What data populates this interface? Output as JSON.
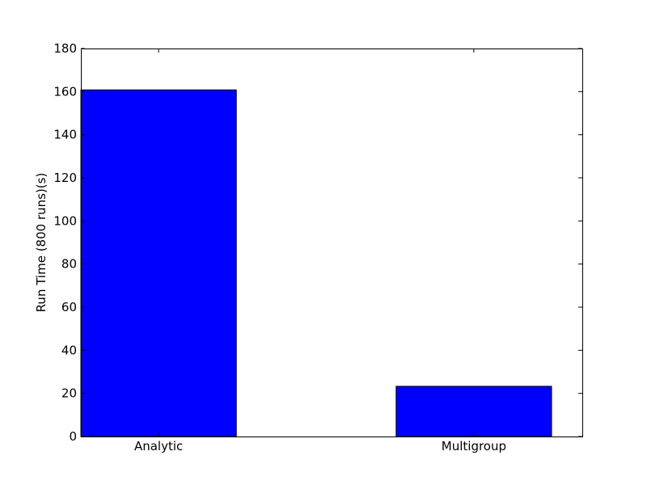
{
  "chart_data": {
    "type": "bar",
    "title": "",
    "xlabel": "",
    "ylabel": "Run Time (800 runs)(s)",
    "categories": [
      "Analytic",
      "Multigroup"
    ],
    "values": [
      160.8,
      23.3
    ],
    "ylim": [
      0,
      180
    ],
    "yticks": [
      0,
      20,
      40,
      60,
      80,
      100,
      120,
      140,
      160,
      180
    ],
    "ytick_labels": [
      "0",
      "20",
      "40",
      "60",
      "80",
      "100",
      "120",
      "140",
      "160",
      "180"
    ],
    "bar_color": "#0000ff",
    "grid": false,
    "legend": "none"
  }
}
